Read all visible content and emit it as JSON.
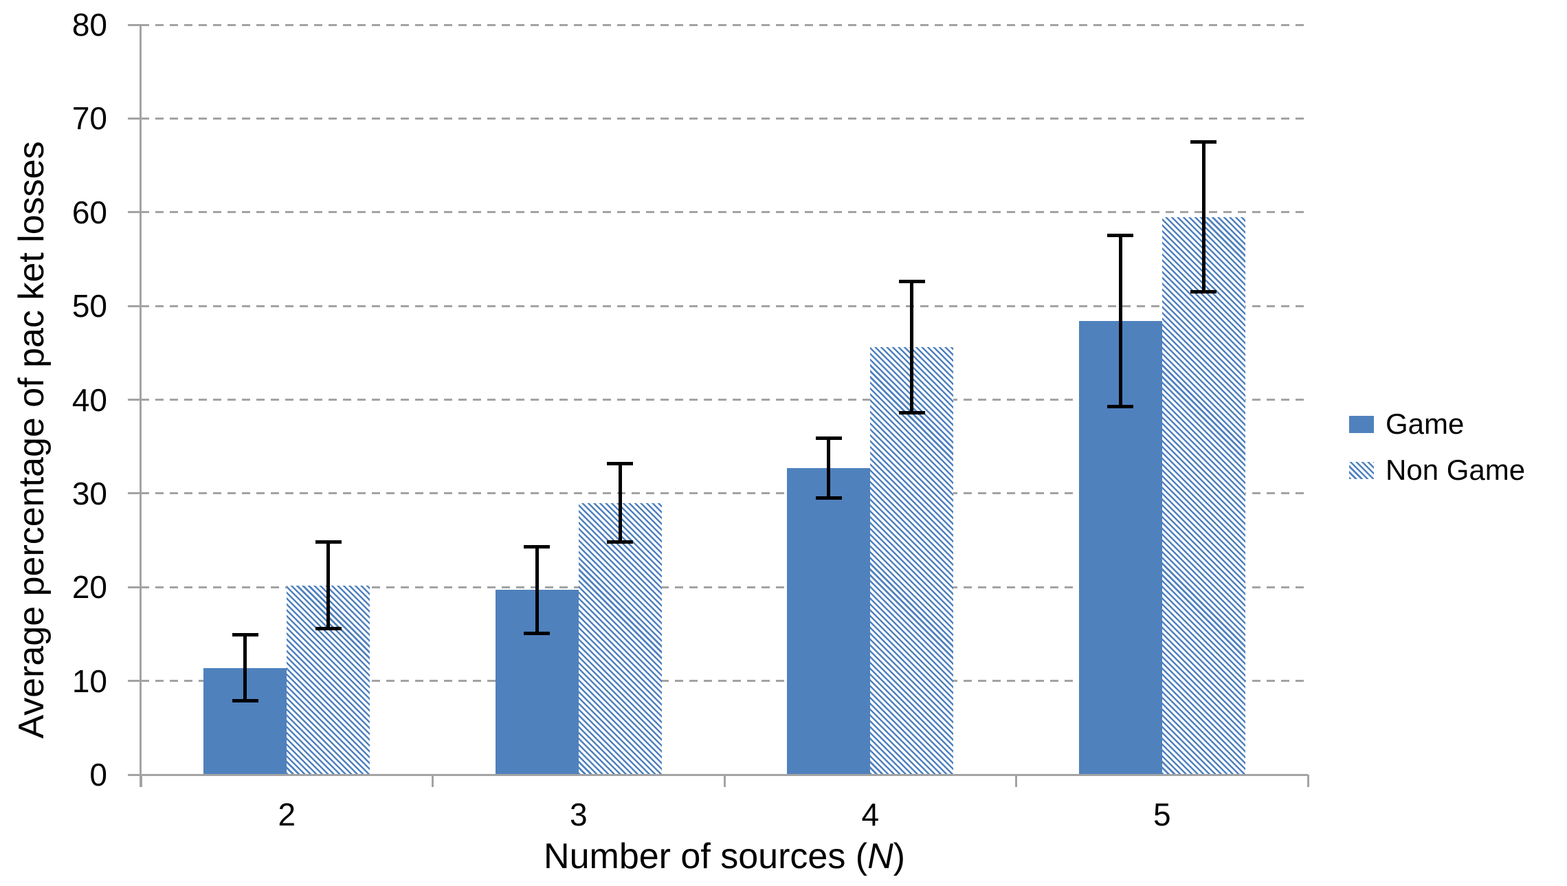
{
  "chart_data": {
    "type": "bar",
    "title": "",
    "categories": [
      "2",
      "3",
      "4",
      "5"
    ],
    "series": [
      {
        "name": "Game",
        "pattern": "solid",
        "values": [
          11.4,
          19.7,
          32.7,
          48.4
        ],
        "error_bars": [
          3.5,
          4.6,
          3.2,
          9.1
        ]
      },
      {
        "name": "Non Game",
        "pattern": "diagonal-hatch",
        "values": [
          20.2,
          29.0,
          45.6,
          59.5
        ],
        "error_bars": [
          4.6,
          4.2,
          7.0,
          8.0
        ]
      }
    ],
    "xlabel_prefix": "Number of sources (",
    "xlabel_var": "N",
    "xlabel_suffix": ")",
    "ylabel": "Average percentage of pac ket losses",
    "ylim": [
      0,
      80
    ],
    "yticks": [
      0,
      10,
      20,
      30,
      40,
      50,
      60,
      70,
      80
    ],
    "grid": "horizontal-dashed",
    "legend_position": "right",
    "legend": [
      "Game",
      "Non Game"
    ],
    "colors": {
      "bar_fill": "#4f81bd",
      "hatch_stripe": "#4f81bd",
      "hatch_background": "#ffffff",
      "gridline": "#a3a3a3",
      "axis": "#a3a3a3",
      "error_bar": "#000000",
      "text": "#000000",
      "background": "#ffffff"
    }
  }
}
